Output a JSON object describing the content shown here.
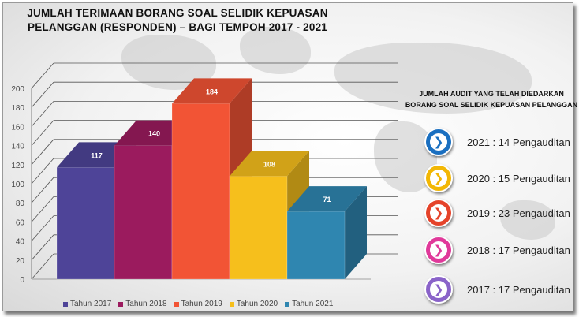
{
  "title": "JUMLAH TERIMAAN BORANG SOAL SELIDIK KEPUASAN PELANGGAN (RESPONDEN) – BAGI TEMPOH 2017 - 2021",
  "chart_data": {
    "type": "bar",
    "title": "JUMLAH TERIMAAN BORANG SOAL SELIDIK KEPUASAN PELANGGAN (RESPONDEN) – BAGI TEMPOH 2017 - 2021",
    "categories": [
      "Tahun 2017",
      "Tahun 2018",
      "Tahun 2019",
      "Tahun 2020",
      "Tahun 2021"
    ],
    "values": [
      117,
      140,
      184,
      108,
      71
    ],
    "colors": [
      "#4e4498",
      "#9b1b5e",
      "#f25435",
      "#f6bf1c",
      "#2f86b0"
    ],
    "ylim": [
      0,
      200
    ],
    "yticks": [
      0,
      20,
      40,
      60,
      80,
      100,
      120,
      140,
      160,
      180,
      200
    ],
    "xlabel": "",
    "ylabel": "",
    "grid": true,
    "legend": "bottom",
    "style": "3d-column"
  },
  "legend_items": [
    "Tahun 2017",
    "Tahun 2018",
    "Tahun 2019",
    "Tahun 2020",
    "Tahun 2021"
  ],
  "audit": {
    "heading": "JUMLAH AUDIT YANG TELAH DIEDARKAN BORANG SOAL SELIDIK KEPUASAN PELANGGAN",
    "items": [
      {
        "text": "2021 : 14 Pengauditan",
        "color": "#1a6fc0",
        "icon": "chevron-right-icon"
      },
      {
        "text": "2020 : 15 Pengauditan",
        "color": "#f2b705",
        "icon": "chevron-right-icon"
      },
      {
        "text": "2019 : 23 Pengauditan",
        "color": "#e5432a",
        "icon": "chevron-right-icon"
      },
      {
        "text": "2018 : 17 Pengauditan",
        "color": "#e0399a",
        "icon": "chevron-right-icon"
      },
      {
        "text": "2017 : 17 Pengauditan",
        "color": "#8a63c9",
        "icon": "chevron-right-icon"
      }
    ]
  }
}
